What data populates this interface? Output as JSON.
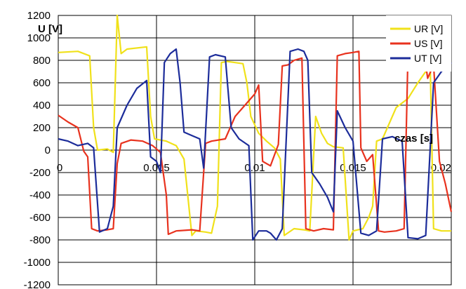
{
  "chart_data": {
    "type": "line",
    "xlabel": "czas [s]",
    "ylabel": "U [V]",
    "xlim": [
      0,
      0.02
    ],
    "ylim": [
      -1200,
      1200
    ],
    "x_ticks": [
      0,
      0.005,
      0.01,
      0.015,
      0.02
    ],
    "x_tick_labels": [
      "0",
      "0.005",
      "0.01",
      "0.015",
      "0.02"
    ],
    "y_ticks": [
      1200,
      1000,
      800,
      600,
      400,
      200,
      0,
      -200,
      -400,
      -600,
      -800,
      -1000,
      -1200
    ],
    "y_tick_labels": [
      "1200",
      "1000",
      "800",
      "600",
      "400",
      "200",
      "0",
      "-200",
      "-400",
      "-600",
      "-800",
      "-1000",
      "-1200"
    ],
    "grid": true,
    "legend_position": "top-right",
    "series": [
      {
        "name": "UR [V]",
        "color": "#f0e11a",
        "points": [
          [
            0.0,
            870
          ],
          [
            0.001,
            880
          ],
          [
            0.0016,
            840
          ],
          [
            0.0018,
            200
          ],
          [
            0.002,
            0
          ],
          [
            0.0025,
            10
          ],
          [
            0.0028,
            -20
          ],
          [
            0.003,
            1200
          ],
          [
            0.0032,
            860
          ],
          [
            0.0035,
            900
          ],
          [
            0.0045,
            920
          ],
          [
            0.0047,
            300
          ],
          [
            0.0049,
            100
          ],
          [
            0.0055,
            80
          ],
          [
            0.006,
            40
          ],
          [
            0.0064,
            -80
          ],
          [
            0.0068,
            -760
          ],
          [
            0.007,
            -720
          ],
          [
            0.0075,
            -730
          ],
          [
            0.0078,
            -740
          ],
          [
            0.0081,
            -500
          ],
          [
            0.0083,
            780
          ],
          [
            0.0086,
            790
          ],
          [
            0.009,
            780
          ],
          [
            0.0094,
            770
          ],
          [
            0.0096,
            600
          ],
          [
            0.0098,
            300
          ],
          [
            0.0102,
            150
          ],
          [
            0.0106,
            80
          ],
          [
            0.011,
            20
          ],
          [
            0.0113,
            -80
          ],
          [
            0.0115,
            -760
          ],
          [
            0.012,
            -700
          ],
          [
            0.0125,
            -710
          ],
          [
            0.0128,
            -720
          ],
          [
            0.0131,
            300
          ],
          [
            0.0134,
            150
          ],
          [
            0.0137,
            60
          ],
          [
            0.014,
            30
          ],
          [
            0.0145,
            20
          ],
          [
            0.0148,
            -800
          ],
          [
            0.015,
            -720
          ],
          [
            0.0155,
            -700
          ],
          [
            0.0158,
            -600
          ],
          [
            0.016,
            -500
          ],
          [
            0.0162,
            80
          ],
          [
            0.0165,
            100
          ],
          [
            0.0172,
            380
          ],
          [
            0.0178,
            460
          ],
          [
            0.0183,
            600
          ],
          [
            0.0187,
            700
          ],
          [
            0.0189,
            1000
          ],
          [
            0.0191,
            -700
          ],
          [
            0.0195,
            -720
          ],
          [
            0.02,
            -720
          ]
        ]
      },
      {
        "name": "US [V]",
        "color": "#e8321e",
        "points": [
          [
            0.0,
            310
          ],
          [
            0.0005,
            250
          ],
          [
            0.001,
            200
          ],
          [
            0.0013,
            -10
          ],
          [
            0.0015,
            -60
          ],
          [
            0.0017,
            -700
          ],
          [
            0.002,
            -720
          ],
          [
            0.0025,
            -710
          ],
          [
            0.0028,
            -700
          ],
          [
            0.003,
            -120
          ],
          [
            0.0032,
            60
          ],
          [
            0.0037,
            90
          ],
          [
            0.0043,
            80
          ],
          [
            0.0048,
            40
          ],
          [
            0.0052,
            -20
          ],
          [
            0.0055,
            -400
          ],
          [
            0.0056,
            -750
          ],
          [
            0.006,
            -720
          ],
          [
            0.0068,
            -710
          ],
          [
            0.0072,
            -720
          ],
          [
            0.0075,
            60
          ],
          [
            0.0078,
            80
          ],
          [
            0.0085,
            100
          ],
          [
            0.009,
            300
          ],
          [
            0.0095,
            400
          ],
          [
            0.01,
            500
          ],
          [
            0.0102,
            580
          ],
          [
            0.0104,
            -100
          ],
          [
            0.0108,
            -140
          ],
          [
            0.0112,
            50
          ],
          [
            0.0114,
            750
          ],
          [
            0.0117,
            760
          ],
          [
            0.012,
            800
          ],
          [
            0.0124,
            820
          ],
          [
            0.0126,
            -700
          ],
          [
            0.013,
            -720
          ],
          [
            0.0135,
            -700
          ],
          [
            0.014,
            -710
          ],
          [
            0.0142,
            840
          ],
          [
            0.0146,
            860
          ],
          [
            0.015,
            870
          ],
          [
            0.0153,
            880
          ],
          [
            0.0154,
            20
          ],
          [
            0.0157,
            -100
          ],
          [
            0.016,
            -40
          ],
          [
            0.0163,
            -720
          ],
          [
            0.0166,
            -730
          ],
          [
            0.0172,
            -720
          ],
          [
            0.0176,
            -700
          ],
          [
            0.0178,
            880
          ],
          [
            0.0182,
            900
          ],
          [
            0.0186,
            880
          ],
          [
            0.0188,
            640
          ],
          [
            0.0191,
            760
          ],
          [
            0.0194,
            -100
          ],
          [
            0.0197,
            -300
          ],
          [
            0.02,
            -550
          ]
        ]
      },
      {
        "name": "UT [V]",
        "color": "#1c2c9a",
        "points": [
          [
            0.0,
            100
          ],
          [
            0.0005,
            80
          ],
          [
            0.001,
            40
          ],
          [
            0.0015,
            60
          ],
          [
            0.0018,
            20
          ],
          [
            0.0021,
            -730
          ],
          [
            0.0025,
            -700
          ],
          [
            0.0028,
            -500
          ],
          [
            0.003,
            200
          ],
          [
            0.0035,
            400
          ],
          [
            0.004,
            550
          ],
          [
            0.0045,
            620
          ],
          [
            0.0047,
            -60
          ],
          [
            0.005,
            -100
          ],
          [
            0.0052,
            -200
          ],
          [
            0.0054,
            780
          ],
          [
            0.0057,
            860
          ],
          [
            0.006,
            900
          ],
          [
            0.0062,
            600
          ],
          [
            0.0064,
            160
          ],
          [
            0.0068,
            130
          ],
          [
            0.0072,
            100
          ],
          [
            0.0074,
            -160
          ],
          [
            0.0077,
            830
          ],
          [
            0.008,
            850
          ],
          [
            0.0085,
            830
          ],
          [
            0.0088,
            200
          ],
          [
            0.0092,
            100
          ],
          [
            0.0097,
            40
          ],
          [
            0.0099,
            -800
          ],
          [
            0.0102,
            -720
          ],
          [
            0.0106,
            -720
          ],
          [
            0.0108,
            -740
          ],
          [
            0.0111,
            -800
          ],
          [
            0.0114,
            -700
          ],
          [
            0.0118,
            880
          ],
          [
            0.0122,
            900
          ],
          [
            0.0125,
            880
          ],
          [
            0.0127,
            800
          ],
          [
            0.0129,
            -200
          ],
          [
            0.0133,
            -300
          ],
          [
            0.0137,
            -420
          ],
          [
            0.014,
            -550
          ],
          [
            0.0142,
            350
          ],
          [
            0.0146,
            200
          ],
          [
            0.015,
            80
          ],
          [
            0.0154,
            -740
          ],
          [
            0.0158,
            -760
          ],
          [
            0.0162,
            -720
          ],
          [
            0.0165,
            100
          ],
          [
            0.017,
            120
          ],
          [
            0.0175,
            80
          ],
          [
            0.0178,
            -780
          ],
          [
            0.0183,
            -790
          ],
          [
            0.0187,
            -760
          ],
          [
            0.0191,
            600
          ],
          [
            0.0195,
            700
          ],
          [
            0.0199,
            760
          ],
          [
            0.02,
            780
          ]
        ]
      }
    ]
  }
}
